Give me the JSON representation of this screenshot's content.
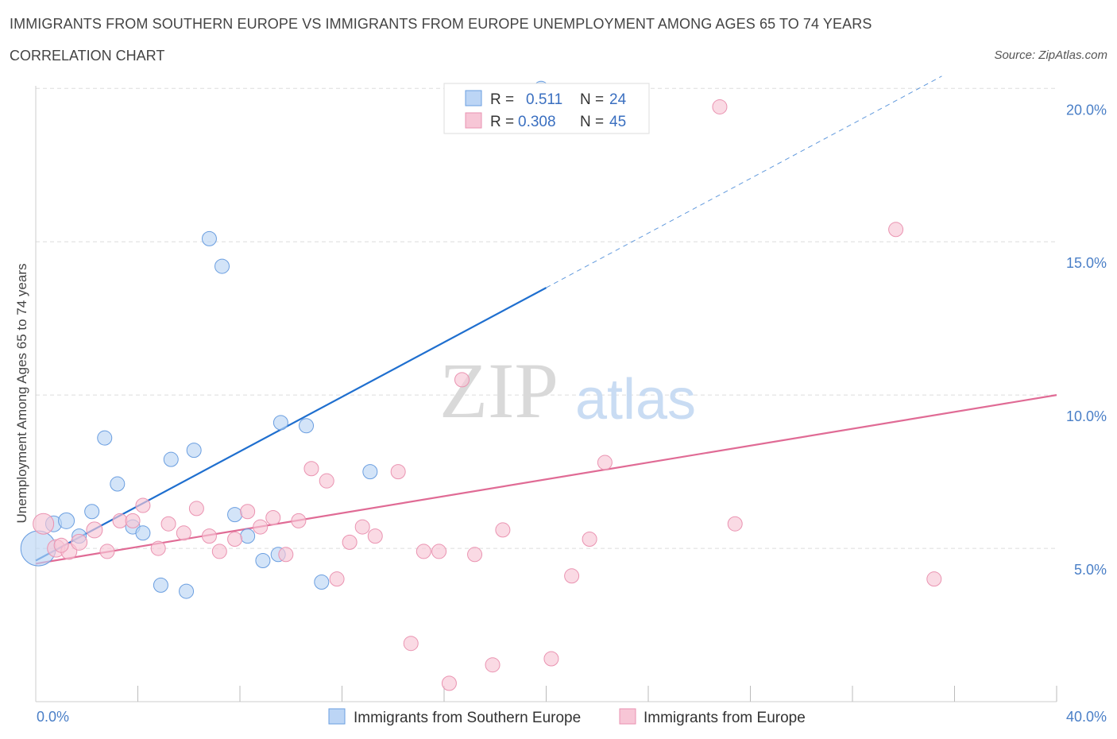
{
  "title": "IMMIGRANTS FROM SOUTHERN EUROPE VS IMMIGRANTS FROM EUROPE UNEMPLOYMENT AMONG AGES 65 TO 74 YEARS",
  "subtitle": "CORRELATION CHART",
  "source": "Source: ZipAtlas.com",
  "watermark": {
    "zip": "ZIP",
    "atlas": "atlas"
  },
  "colors": {
    "blue": "#1f6fcf",
    "blue_fill": "#bcd5f5",
    "blue_stroke": "#6a9ee0",
    "pink": "#e06b95",
    "pink_fill": "#f7c6d6",
    "pink_stroke": "#ea93b1",
    "grid": "#dddddd",
    "tick_label": "#4a7fc7"
  },
  "chart_data": {
    "type": "scatter",
    "title": "IMMIGRANTS FROM SOUTHERN EUROPE VS IMMIGRANTS FROM EUROPE UNEMPLOYMENT AMONG AGES 65 TO 74 YEARS",
    "subtitle": "CORRELATION CHART",
    "xlabel": "",
    "ylabel": "Unemployment Among Ages 65 to 74 years",
    "xlim": [
      0,
      40
    ],
    "ylim": [
      0,
      20.5
    ],
    "x_tick_labels": [
      "0.0%",
      "40.0%"
    ],
    "y_ticks": [
      5,
      10,
      15,
      20
    ],
    "y_tick_labels": [
      "5.0%",
      "10.0%",
      "15.0%",
      "20.0%"
    ],
    "grid": true,
    "legend_position": "top-center",
    "series": [
      {
        "name": "Immigrants from Southern Europe",
        "color": "blue",
        "R": "0.511",
        "N": "24",
        "trend": {
          "x0": 0,
          "y0": 4.6,
          "x1": 20,
          "y1": 13.5,
          "dashed_to_x": 35.5,
          "dashed_to_y": 20.4
        },
        "points": [
          [
            0.1,
            5.0,
            22
          ],
          [
            0.7,
            5.8,
            10
          ],
          [
            1.2,
            5.9,
            10
          ],
          [
            1.7,
            5.4,
            9
          ],
          [
            2.2,
            6.2,
            9
          ],
          [
            2.7,
            8.6,
            9
          ],
          [
            3.2,
            7.1,
            9
          ],
          [
            3.8,
            5.7,
            9
          ],
          [
            4.2,
            5.5,
            9
          ],
          [
            4.9,
            3.8,
            9
          ],
          [
            5.3,
            7.9,
            9
          ],
          [
            5.9,
            3.6,
            9
          ],
          [
            6.2,
            8.2,
            9
          ],
          [
            6.8,
            15.1,
            9
          ],
          [
            7.3,
            14.2,
            9
          ],
          [
            7.8,
            6.1,
            9
          ],
          [
            8.3,
            5.4,
            9
          ],
          [
            8.9,
            4.6,
            9
          ],
          [
            9.5,
            4.8,
            9
          ],
          [
            9.6,
            9.1,
            9
          ],
          [
            10.6,
            9.0,
            9
          ],
          [
            11.2,
            3.9,
            9
          ],
          [
            13.1,
            7.5,
            9
          ],
          [
            19.8,
            20.0,
            9
          ]
        ]
      },
      {
        "name": "Immigrants from Europe",
        "color": "pink",
        "R": "0.308",
        "N": "45",
        "trend": {
          "x0": 0,
          "y0": 4.5,
          "x1": 40,
          "y1": 10.0
        },
        "points": [
          [
            0.3,
            5.8,
            13
          ],
          [
            0.8,
            5.0,
            11
          ],
          [
            1.3,
            4.9,
            10
          ],
          [
            1.7,
            5.2,
            10
          ],
          [
            2.3,
            5.6,
            10
          ],
          [
            2.8,
            4.9,
            9
          ],
          [
            3.3,
            5.9,
            9
          ],
          [
            3.8,
            5.9,
            9
          ],
          [
            4.2,
            6.4,
            9
          ],
          [
            4.8,
            5.0,
            9
          ],
          [
            5.2,
            5.8,
            9
          ],
          [
            5.8,
            5.5,
            9
          ],
          [
            6.3,
            6.3,
            9
          ],
          [
            6.8,
            5.4,
            9
          ],
          [
            7.2,
            4.9,
            9
          ],
          [
            7.8,
            5.3,
            9
          ],
          [
            8.3,
            6.2,
            9
          ],
          [
            8.8,
            5.7,
            9
          ],
          [
            9.3,
            6.0,
            9
          ],
          [
            9.8,
            4.8,
            9
          ],
          [
            10.3,
            5.9,
            9
          ],
          [
            10.8,
            7.6,
            9
          ],
          [
            11.4,
            7.2,
            9
          ],
          [
            11.8,
            4.0,
            9
          ],
          [
            12.3,
            5.2,
            9
          ],
          [
            12.8,
            5.7,
            9
          ],
          [
            13.3,
            5.4,
            9
          ],
          [
            14.2,
            7.5,
            9
          ],
          [
            14.7,
            1.9,
            9
          ],
          [
            15.2,
            4.9,
            9
          ],
          [
            15.8,
            4.9,
            9
          ],
          [
            16.2,
            0.6,
            9
          ],
          [
            16.7,
            10.5,
            9
          ],
          [
            17.2,
            4.8,
            9
          ],
          [
            17.9,
            1.2,
            9
          ],
          [
            18.3,
            5.6,
            9
          ],
          [
            20.2,
            1.4,
            9
          ],
          [
            21.0,
            4.1,
            9
          ],
          [
            21.7,
            5.3,
            9
          ],
          [
            22.3,
            7.8,
            9
          ],
          [
            26.8,
            19.4,
            9
          ],
          [
            27.4,
            5.8,
            9
          ],
          [
            33.7,
            15.4,
            9
          ],
          [
            35.2,
            4.0,
            9
          ],
          [
            1.0,
            5.1,
            9
          ]
        ]
      }
    ]
  },
  "legend": {
    "r_label": "R =",
    "n_label": "N =",
    "blue_r": "0.511",
    "blue_n": "24",
    "pink_r": "0.308",
    "pink_n": "45"
  },
  "bottom_legend": {
    "blue_label": "Immigrants from Southern Europe",
    "pink_label": "Immigrants from Europe"
  }
}
